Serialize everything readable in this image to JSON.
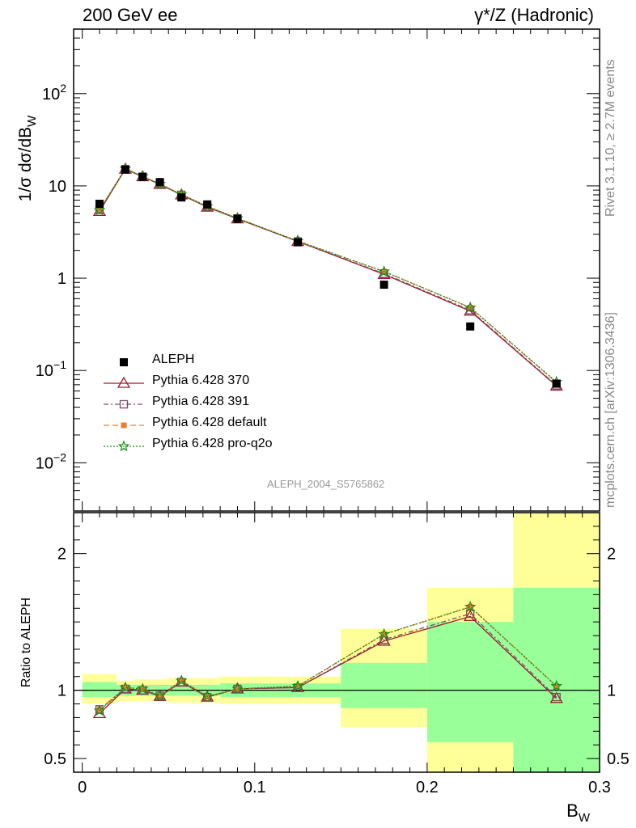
{
  "header": {
    "left_label": "200 GeV ee",
    "right_label": "γ*/Z (Hadronic)"
  },
  "side_labels": {
    "rivet": "Rivet 3.1.10, ≥ 2.7M events",
    "mcplots": "mcplots.cern.ch [arXiv:1306.3436]"
  },
  "analysis_tag": "ALEPH_2004_S5765862",
  "legend": {
    "items": [
      {
        "label": "ALEPH",
        "color": "#000000",
        "marker": "filled-square"
      },
      {
        "label": "Pythia 6.428 370",
        "color": "#9a1a2a",
        "marker": "open-triangle"
      },
      {
        "label": "Pythia 6.428 391",
        "color": "#7a4a6a",
        "marker": "open-square"
      },
      {
        "label": "Pythia 6.428 default",
        "color": "#f07d2e",
        "marker": "filled-square-small"
      },
      {
        "label": "Pythia 6.428 pro-q2o",
        "color": "#1a8c1a",
        "marker": "open-star"
      }
    ]
  },
  "chart_data": [
    {
      "type": "line",
      "panel": "main",
      "ylabel": "1/σ  dσ/dB_W",
      "yscale": "log",
      "xlim": [
        -0.005,
        0.3
      ],
      "ylim": [
        0.003,
        500
      ],
      "yticks": [
        {
          "v": 0.01,
          "mant": "10",
          "exp": "−2"
        },
        {
          "v": 0.1,
          "mant": "10",
          "exp": "−1"
        },
        {
          "v": 1,
          "mant": "1",
          "exp": ""
        },
        {
          "v": 10,
          "mant": "10",
          "exp": ""
        },
        {
          "v": 100,
          "mant": "10",
          "exp": "2"
        }
      ],
      "x": [
        0.01,
        0.025,
        0.035,
        0.045,
        0.0575,
        0.0725,
        0.09,
        0.125,
        0.175,
        0.225,
        0.275
      ],
      "data": {
        "name": "ALEPH",
        "values": [
          6.4,
          15.0,
          12.5,
          11.0,
          7.5,
          6.3,
          4.4,
          2.45,
          0.85,
          0.3,
          0.072
        ]
      },
      "series": [
        {
          "name": "Pythia 6.428 370",
          "color": "#9a1a2a",
          "values": [
            5.3,
            15.2,
            12.6,
            10.4,
            8.0,
            5.9,
            4.4,
            2.5,
            1.1,
            0.44,
            0.068
          ]
        },
        {
          "name": "Pythia 6.428 391",
          "color": "#7a4a6a",
          "values": [
            5.5,
            15.2,
            12.6,
            10.5,
            8.0,
            5.95,
            4.45,
            2.5,
            1.12,
            0.45,
            0.069
          ]
        },
        {
          "name": "Pythia 6.428 default",
          "color": "#f07d2e",
          "values": [
            5.5,
            15.4,
            12.7,
            10.5,
            8.1,
            6.0,
            4.45,
            2.52,
            1.18,
            0.48,
            0.074
          ]
        },
        {
          "name": "Pythia 6.428 pro-q2o",
          "color": "#1a8c1a",
          "values": [
            5.45,
            15.4,
            12.7,
            10.5,
            8.1,
            6.0,
            4.45,
            2.53,
            1.18,
            0.48,
            0.075
          ]
        }
      ]
    },
    {
      "type": "line",
      "panel": "ratio",
      "ylabel": "Ratio to ALEPH",
      "xlabel": "B_W",
      "xlim": [
        -0.005,
        0.3
      ],
      "ylim": [
        0.4,
        2.3
      ],
      "xticks": [
        {
          "v": 0,
          "label": "0"
        },
        {
          "v": 0.1,
          "label": "0.1"
        },
        {
          "v": 0.2,
          "label": "0.2"
        },
        {
          "v": 0.3,
          "label": "0.3"
        }
      ],
      "yticks": [
        {
          "v": 0.5,
          "label": "0.5"
        },
        {
          "v": 1,
          "label": "1"
        },
        {
          "v": 2,
          "label": "2"
        }
      ],
      "x": [
        0.01,
        0.025,
        0.035,
        0.045,
        0.0575,
        0.0725,
        0.09,
        0.125,
        0.175,
        0.225,
        0.275
      ],
      "bands": [
        {
          "x0": 0.0,
          "x1": 0.02,
          "outer": [
            0.9,
            1.12
          ],
          "inner": [
            0.95,
            1.06
          ]
        },
        {
          "x0": 0.02,
          "x1": 0.03,
          "outer": [
            0.92,
            1.07
          ],
          "inner": [
            0.96,
            1.04
          ]
        },
        {
          "x0": 0.03,
          "x1": 0.04,
          "outer": [
            0.92,
            1.08
          ],
          "inner": [
            0.96,
            1.04
          ]
        },
        {
          "x0": 0.04,
          "x1": 0.05,
          "outer": [
            0.92,
            1.08
          ],
          "inner": [
            0.96,
            1.04
          ]
        },
        {
          "x0": 0.05,
          "x1": 0.065,
          "outer": [
            0.91,
            1.09
          ],
          "inner": [
            0.96,
            1.04
          ]
        },
        {
          "x0": 0.065,
          "x1": 0.08,
          "outer": [
            0.91,
            1.09
          ],
          "inner": [
            0.96,
            1.04
          ]
        },
        {
          "x0": 0.08,
          "x1": 0.1,
          "outer": [
            0.9,
            1.1
          ],
          "inner": [
            0.95,
            1.05
          ]
        },
        {
          "x0": 0.1,
          "x1": 0.15,
          "outer": [
            0.9,
            1.1
          ],
          "inner": [
            0.95,
            1.05
          ]
        },
        {
          "x0": 0.15,
          "x1": 0.2,
          "outer": [
            0.73,
            1.45
          ],
          "inner": [
            0.87,
            1.2
          ]
        },
        {
          "x0": 0.2,
          "x1": 0.25,
          "outer": [
            0.4,
            1.75
          ],
          "inner": [
            0.62,
            1.5
          ]
        },
        {
          "x0": 0.25,
          "x1": 0.3,
          "outer": [
            0.4,
            2.3
          ],
          "inner": [
            0.4,
            1.75
          ]
        }
      ],
      "series": [
        {
          "name": "Pythia 6.428 370",
          "color": "#9a1a2a",
          "values": [
            0.83,
            1.01,
            1.0,
            0.955,
            1.06,
            0.95,
            1.01,
            1.02,
            1.36,
            1.54,
            0.94
          ]
        },
        {
          "name": "Pythia 6.428 391",
          "color": "#7a4a6a",
          "values": [
            0.86,
            1.01,
            1.0,
            0.96,
            1.06,
            0.95,
            1.01,
            1.02,
            1.37,
            1.56,
            0.95
          ]
        },
        {
          "name": "Pythia 6.428 default",
          "color": "#f07d2e",
          "values": [
            0.86,
            1.02,
            1.01,
            0.96,
            1.07,
            0.955,
            1.01,
            1.03,
            1.41,
            1.61,
            1.03
          ]
        },
        {
          "name": "Pythia 6.428 pro-q2o",
          "color": "#1a8c1a",
          "values": [
            0.85,
            1.02,
            1.01,
            0.96,
            1.07,
            0.955,
            1.01,
            1.03,
            1.41,
            1.61,
            1.03
          ]
        }
      ]
    }
  ]
}
